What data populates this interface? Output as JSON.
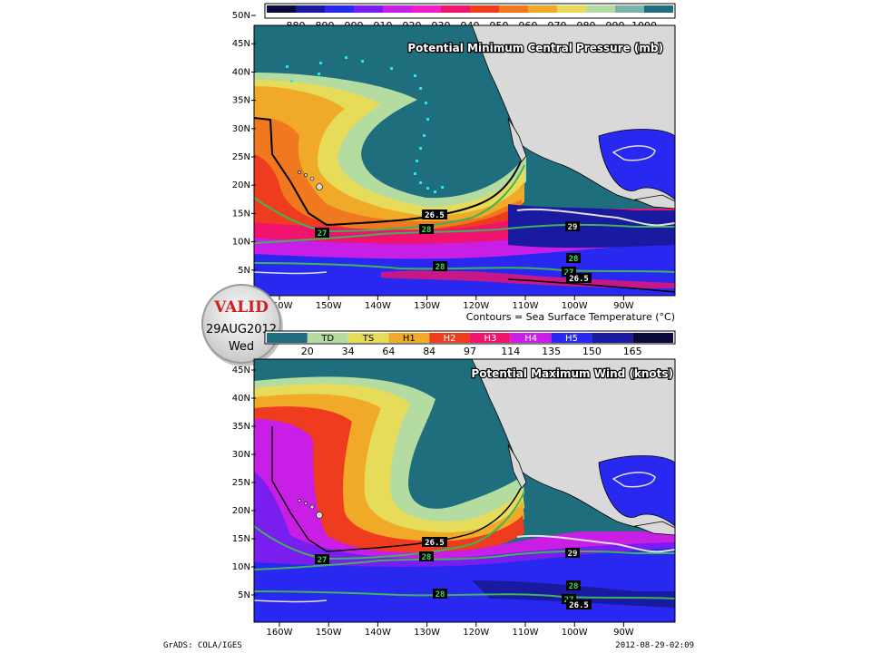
{
  "top_panel": {
    "title": "Potential Minimum Central Pressure (mb)",
    "colorbar_labels": [
      "880",
      "890",
      "900",
      "910",
      "920",
      "930",
      "940",
      "950",
      "960",
      "970",
      "980",
      "990",
      "1000"
    ],
    "colorbar_colors": [
      "#0a0a3a",
      "#1a1aa0",
      "#2828f0",
      "#7a1ef0",
      "#c81ee6",
      "#f01ec8",
      "#f0146e",
      "#f03c1e",
      "#f0781e",
      "#f0aa28",
      "#e6dc5a",
      "#b4dca0",
      "#78b4aa",
      "#1e6e7e"
    ]
  },
  "bottom_panel": {
    "title": "Potential Maximum Wind (knots)",
    "category_labels": [
      "TD",
      "TS",
      "H1",
      "H2",
      "H3",
      "H4",
      "H5"
    ],
    "value_labels": [
      "20",
      "34",
      "64",
      "84",
      "97",
      "114",
      "135",
      "150",
      "165"
    ],
    "colorbar_colors": [
      "#1e6e7e",
      "#b4dca0",
      "#e6dc5a",
      "#f0aa28",
      "#f03c1e",
      "#f0146e",
      "#c81ee6",
      "#2828f0",
      "#1a1aa0",
      "#0a0a3a"
    ]
  },
  "axes": {
    "lat_labels": [
      "50N",
      "45N",
      "40N",
      "35N",
      "30N",
      "25N",
      "20N",
      "15N",
      "10N",
      "5N"
    ],
    "lat_labels_bottom": [
      "45N",
      "40N",
      "35N",
      "30N",
      "25N",
      "20N",
      "15N",
      "10N",
      "5N"
    ],
    "lon_labels": [
      "160W",
      "150W",
      "140W",
      "130W",
      "120W",
      "110W",
      "100W",
      "90W"
    ]
  },
  "contours": {
    "caption": "Contours = Sea Surface Temperature (°C)",
    "labels_top": [
      "26.5",
      "27",
      "28",
      "29",
      "28",
      "27",
      "26.5",
      "28"
    ],
    "labels_bottom": [
      "26.5",
      "27",
      "28",
      "29",
      "28",
      "27",
      "26.5",
      "28"
    ]
  },
  "valid_stamp": {
    "valid": "VALID",
    "date": "29AUG2012",
    "day": "Wed"
  },
  "footer": {
    "left": "GrADS: COLA/IGES",
    "right": "2012-08-29-02:09"
  },
  "colors": {
    "land": "#d9d9d9",
    "ocean_cool": "#1e6e7e",
    "contour_green": "#3cb45a",
    "contour_white": "#e0e0e0",
    "contour_black": "#000000"
  }
}
